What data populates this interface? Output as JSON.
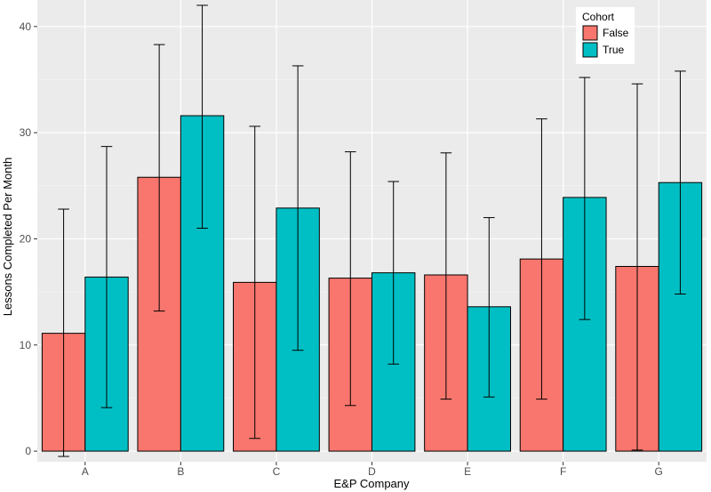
{
  "chart_data": {
    "type": "bar",
    "title": "",
    "xlabel": "E&P Company",
    "ylabel": "Lessons Completed Per Month",
    "categories": [
      "A",
      "B",
      "C",
      "D",
      "E",
      "F",
      "G"
    ],
    "ylim": [
      -1.0,
      42.5
    ],
    "yticks": [
      0,
      10,
      20,
      30,
      40
    ],
    "grid": true,
    "legend": {
      "title": "Cohort",
      "position": "top-right"
    },
    "series": [
      {
        "name": "False",
        "color": "#F8766D",
        "values": [
          11.1,
          25.8,
          15.9,
          16.3,
          16.6,
          18.1,
          17.4
        ],
        "err_low": [
          -0.5,
          13.2,
          1.2,
          4.3,
          4.9,
          4.9,
          0.1
        ],
        "err_high": [
          22.8,
          38.3,
          30.6,
          28.2,
          28.1,
          31.3,
          34.6
        ]
      },
      {
        "name": "True",
        "color": "#00BFC4",
        "values": [
          16.4,
          31.6,
          22.9,
          16.8,
          13.6,
          23.9,
          25.3
        ],
        "err_low": [
          4.1,
          21.0,
          9.5,
          8.2,
          5.1,
          12.4,
          14.8
        ],
        "err_high": [
          28.7,
          42.0,
          36.3,
          25.4,
          22.0,
          35.2,
          35.8
        ]
      }
    ]
  }
}
